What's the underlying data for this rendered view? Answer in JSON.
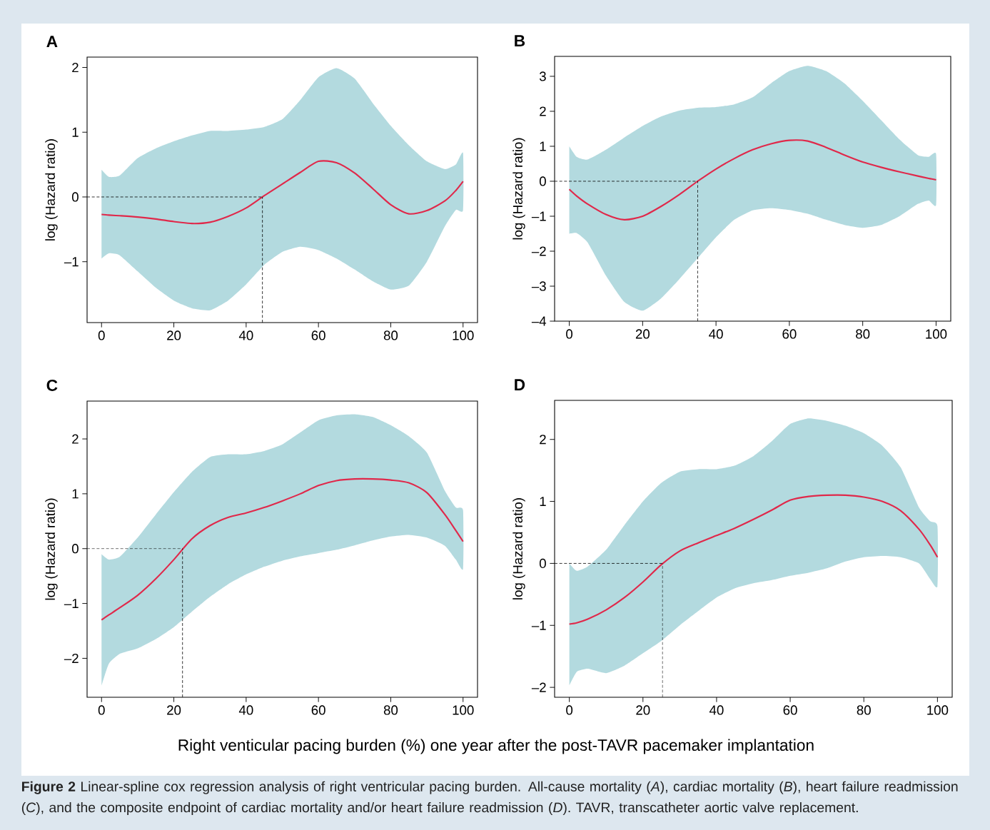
{
  "chart_data": [
    {
      "type": "line",
      "title": "A",
      "ylabel": "log (Hazard ratio)",
      "xlim": [
        -4,
        104
      ],
      "ylim": [
        -1.94,
        2.16
      ],
      "xticks": [
        0,
        20,
        40,
        60,
        80,
        100
      ],
      "yticks": [
        {
          "value": -1,
          "label": "–1"
        },
        0,
        1,
        2
      ],
      "series": [
        {
          "color": "#e0284a",
          "x": [
            0,
            2,
            5,
            10,
            15,
            20,
            25,
            30,
            35,
            40,
            45,
            50,
            55,
            60,
            65,
            70,
            75,
            80,
            85,
            90,
            95,
            98,
            100
          ],
          "values": [
            -0.27,
            -0.28,
            -0.29,
            -0.31,
            -0.34,
            -0.38,
            -0.41,
            -0.39,
            -0.3,
            -0.17,
            0.02,
            0.2,
            0.38,
            0.55,
            0.53,
            0.37,
            0.13,
            -0.12,
            -0.26,
            -0.21,
            -0.06,
            0.1,
            0.24
          ],
          "upper": [
            0.42,
            0.31,
            0.33,
            0.6,
            0.75,
            0.86,
            0.95,
            1.02,
            1.02,
            1.04,
            1.08,
            1.2,
            1.5,
            1.85,
            1.99,
            1.83,
            1.45,
            1.1,
            0.8,
            0.55,
            0.43,
            0.5,
            0.68
          ],
          "lower": [
            -0.95,
            -0.87,
            -0.9,
            -1.15,
            -1.4,
            -1.6,
            -1.72,
            -1.75,
            -1.6,
            -1.35,
            -1.05,
            -0.85,
            -0.77,
            -0.82,
            -0.95,
            -1.12,
            -1.3,
            -1.43,
            -1.37,
            -1.0,
            -0.45,
            -0.2,
            -0.2
          ]
        }
      ],
      "ref_lines": [
        {
          "axis": "y",
          "value": 0,
          "line_style": "dashed"
        },
        {
          "axis": "x",
          "value": 44.5,
          "line_style": "dashed"
        }
      ]
    },
    {
      "type": "line",
      "title": "B",
      "ylabel": "log (Hazard ratio)",
      "xlim": [
        -4,
        104
      ],
      "ylim": [
        -4,
        3.57
      ],
      "xticks": [
        0,
        20,
        40,
        60,
        80,
        100
      ],
      "yticks": [
        {
          "value": -4,
          "label": "–4"
        },
        {
          "value": -3,
          "label": "–3"
        },
        {
          "value": -2,
          "label": "–2"
        },
        {
          "value": -1,
          "label": "–1"
        },
        0,
        1,
        2,
        3
      ],
      "series": [
        {
          "color": "#e0284a",
          "x": [
            0,
            2,
            5,
            10,
            15,
            20,
            25,
            30,
            35,
            40,
            45,
            50,
            55,
            60,
            65,
            70,
            75,
            80,
            85,
            90,
            95,
            98,
            100
          ],
          "values": [
            -0.23,
            -0.42,
            -0.65,
            -0.95,
            -1.1,
            -1.0,
            -0.72,
            -0.38,
            0,
            0.35,
            0.65,
            0.9,
            1.07,
            1.17,
            1.15,
            0.97,
            0.75,
            0.55,
            0.4,
            0.27,
            0.15,
            0.08,
            0.04
          ],
          "upper": [
            1.0,
            0.7,
            0.62,
            0.9,
            1.25,
            1.58,
            1.85,
            2.02,
            2.1,
            2.12,
            2.2,
            2.4,
            2.8,
            3.15,
            3.3,
            3.15,
            2.8,
            2.3,
            1.75,
            1.2,
            0.75,
            0.7,
            0.78
          ],
          "lower": [
            -1.5,
            -1.48,
            -1.75,
            -2.7,
            -3.45,
            -3.7,
            -3.35,
            -2.8,
            -2.2,
            -1.6,
            -1.1,
            -0.83,
            -0.77,
            -0.82,
            -0.93,
            -1.1,
            -1.25,
            -1.33,
            -1.25,
            -1.0,
            -0.65,
            -0.55,
            -0.68
          ]
        }
      ],
      "ref_lines": [
        {
          "axis": "y",
          "value": 0,
          "line_style": "dashed"
        },
        {
          "axis": "x",
          "value": 35,
          "line_style": "dashed"
        }
      ]
    },
    {
      "type": "line",
      "title": "C",
      "ylabel": "log (Hazard ratio)",
      "xlabel": "Right venticular pacing burden (%) one year after the post-TAVR pacemaker implantation",
      "xlim": [
        -4,
        104
      ],
      "ylim": [
        -2.71,
        2.69
      ],
      "xticks": [
        0,
        20,
        40,
        60,
        80,
        100
      ],
      "yticks": [
        {
          "value": -2,
          "label": "–2"
        },
        {
          "value": -1,
          "label": "–1"
        },
        0,
        1,
        2
      ],
      "series": [
        {
          "color": "#e0284a",
          "x": [
            0,
            2,
            5,
            10,
            15,
            20,
            25,
            30,
            35,
            40,
            45,
            50,
            55,
            60,
            65,
            70,
            75,
            80,
            85,
            90,
            95,
            98,
            100
          ],
          "values": [
            -1.3,
            -1.21,
            -1.08,
            -0.85,
            -0.55,
            -0.2,
            0.18,
            0.42,
            0.57,
            0.65,
            0.75,
            0.87,
            1.0,
            1.15,
            1.24,
            1.27,
            1.27,
            1.25,
            1.2,
            1.02,
            0.62,
            0.33,
            0.13
          ],
          "upper": [
            -0.1,
            -0.2,
            -0.15,
            0.2,
            0.62,
            1.03,
            1.4,
            1.67,
            1.72,
            1.72,
            1.78,
            1.9,
            2.12,
            2.34,
            2.43,
            2.45,
            2.4,
            2.25,
            2.05,
            1.75,
            1.05,
            0.75,
            0.7
          ],
          "lower": [
            -2.5,
            -2.1,
            -1.92,
            -1.82,
            -1.65,
            -1.43,
            -1.15,
            -0.88,
            -0.65,
            -0.47,
            -0.33,
            -0.22,
            -0.14,
            -0.08,
            -0.02,
            0.06,
            0.15,
            0.22,
            0.25,
            0.2,
            0.05,
            -0.2,
            -0.37
          ]
        }
      ],
      "ref_lines": [
        {
          "axis": "y",
          "value": 0,
          "line_style": "dashed"
        },
        {
          "axis": "x",
          "value": 22.4,
          "line_style": "dashed"
        }
      ]
    },
    {
      "type": "line",
      "title": "D",
      "ylabel": "log (Hazard ratio)",
      "xlim": [
        -4,
        104
      ],
      "ylim": [
        -2.16,
        2.63
      ],
      "xticks": [
        0,
        20,
        40,
        60,
        80,
        100
      ],
      "yticks": [
        {
          "value": -2,
          "label": "–2"
        },
        {
          "value": -1,
          "label": "–1"
        },
        0,
        1,
        2
      ],
      "series": [
        {
          "color": "#e0284a",
          "x": [
            0,
            2,
            5,
            10,
            15,
            20,
            25,
            30,
            35,
            40,
            45,
            50,
            55,
            60,
            65,
            70,
            75,
            80,
            85,
            90,
            95,
            98,
            100
          ],
          "values": [
            -0.98,
            -0.96,
            -0.9,
            -0.75,
            -0.55,
            -0.3,
            -0.02,
            0.2,
            0.33,
            0.45,
            0.57,
            0.71,
            0.86,
            1.02,
            1.08,
            1.1,
            1.1,
            1.07,
            1.0,
            0.85,
            0.55,
            0.3,
            0.1
          ],
          "upper": [
            0.0,
            -0.12,
            -0.05,
            0.22,
            0.62,
            1.0,
            1.3,
            1.48,
            1.52,
            1.52,
            1.58,
            1.73,
            1.97,
            2.25,
            2.34,
            2.3,
            2.22,
            2.1,
            1.9,
            1.55,
            0.9,
            0.68,
            0.6
          ],
          "lower": [
            -1.97,
            -1.75,
            -1.7,
            -1.77,
            -1.65,
            -1.45,
            -1.25,
            -1.0,
            -0.77,
            -0.55,
            -0.4,
            -0.32,
            -0.27,
            -0.2,
            -0.15,
            -0.08,
            0.03,
            0.1,
            0.12,
            0.1,
            0.0,
            -0.25,
            -0.37
          ]
        }
      ],
      "ref_lines": [
        {
          "axis": "y",
          "value": 0,
          "line_style": "dashed"
        },
        {
          "axis": "x",
          "value": 25.3,
          "line_style": "dashed"
        }
      ],
      "annotations": [
        "**Figure 2** Linear-spline cox regression analysis of right ventricular pacing burden. All-cause mortality (*A*), cardiac mortality (*B*), heart failure readmission (*C*), and the composite endpoint of cardiac mortality and/or heart failure readmission (*D*). TAVR, transcatheter aortic valve replacement."
      ]
    }
  ]
}
